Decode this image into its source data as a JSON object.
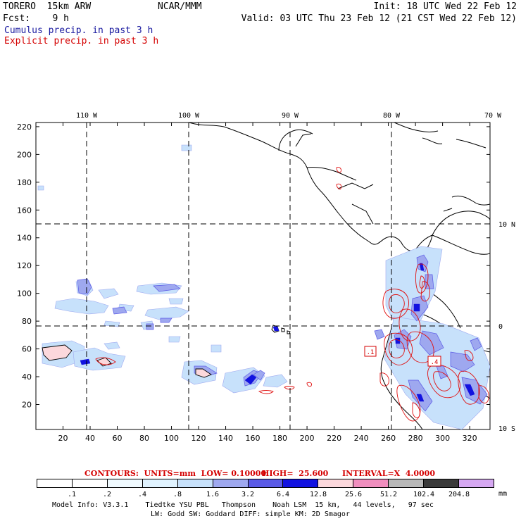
{
  "header": {
    "model": "TORERO  15km ARW",
    "center": "NCAR/MMM",
    "init": "Init: 18 UTC Wed 22 Feb 12",
    "fcst": "Fcst:    9 h",
    "valid": "Valid: 03 UTC Thu 23 Feb 12 (21 CST Wed 22 Feb 12)",
    "field1": "Cumulus precip. in past 3 h",
    "field2": "Explicit precip. in past 3 h",
    "field1_color": "#1a1aa0",
    "field2_color": "#d40000"
  },
  "map": {
    "lon_labels": [
      "110 W",
      "100 W",
      "90 W",
      "80 W",
      "70 W"
    ],
    "lat_labels": [
      "10 N",
      "0",
      "10 S"
    ],
    "y_ticks": [
      "20",
      "40",
      "60",
      "80",
      "100",
      "120",
      "140",
      "160",
      "180",
      "200",
      "220"
    ],
    "x_ticks": [
      "20",
      "40",
      "60",
      "80",
      "100",
      "120",
      "140",
      "160",
      "180",
      "200",
      "220",
      "240",
      "260",
      "280",
      "300",
      "320"
    ],
    "x_range": [
      0,
      335
    ],
    "y_range": [
      2,
      223
    ],
    "grid_x": [
      40,
      113,
      185,
      260
    ],
    "grid_y": [
      76,
      150
    ],
    "highlight_boxes": [
      ".1",
      ".4"
    ]
  },
  "contours_line": {
    "label": "CONTOURS:  UNITS=mm  LOW= 0.10000",
    "high": "HIGH=  25.600",
    "interval": "INTERVAL=X  4.0000"
  },
  "colorbar": {
    "levels": [
      ".1",
      ".2",
      ".4",
      ".8",
      "1.6",
      "3.2",
      "6.4",
      "12.8",
      "25.6",
      "51.2",
      "102.4",
      "204.8"
    ],
    "units": "mm",
    "colors": [
      "#ffffff",
      "#ffffff",
      "#f0faff",
      "#e0f3ff",
      "#c7e1fb",
      "#9ea8ef",
      "#5a5ae6",
      "#1212e0",
      "#fcd8dc",
      "#f08ebe",
      "#b8b8b8",
      "#3a3a3a",
      "#d6a8f2"
    ]
  },
  "footer": {
    "line1": "Model Info: V3.3.1    Tiedtke YSU PBL   Thompson    Noah LSM  15 km,   44 levels,   97 sec",
    "line2": "LW: Godd SW: Goddard DIFF: simple KM: 2D Smagor"
  }
}
